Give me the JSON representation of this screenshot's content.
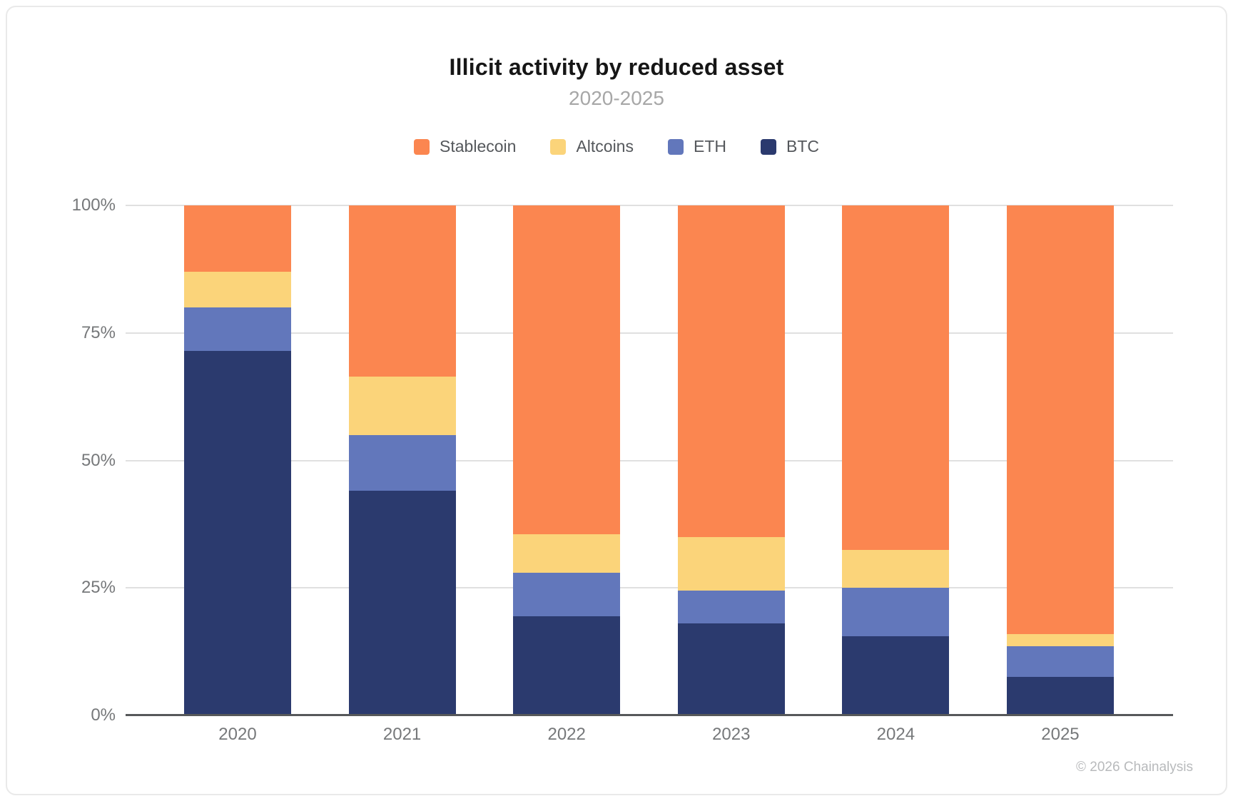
{
  "chart_data": {
    "type": "bar",
    "stacked": true,
    "unit": "%",
    "title": "Illicit activity by reduced asset",
    "subtitle": "2020-2025",
    "xlabel": "",
    "ylabel": "",
    "ylim": [
      0,
      100
    ],
    "grid": true,
    "legend_position": "top",
    "yticks": [
      "100%",
      "75%",
      "50%",
      "25%",
      "0%"
    ],
    "categories": [
      "2020",
      "2021",
      "2022",
      "2023",
      "2024",
      "2025"
    ],
    "series": [
      {
        "name": "Stablecoin",
        "color": "#FB8650",
        "values": [
          13,
          33.5,
          64.5,
          65,
          67.5,
          84
        ]
      },
      {
        "name": "Altcoins",
        "color": "#FBD47A",
        "values": [
          7,
          11.5,
          7.5,
          10.5,
          7.5,
          2.5
        ]
      },
      {
        "name": "ETH",
        "color": "#6277BB",
        "values": [
          8.5,
          11,
          8.5,
          6.5,
          9.5,
          6
        ]
      },
      {
        "name": "BTC",
        "color": "#2B3A6E",
        "values": [
          71.5,
          44,
          19.5,
          18,
          15.5,
          7.5
        ]
      }
    ]
  },
  "colors": {
    "gridline": "#e0e0e0",
    "axis_line": "#56585a",
    "tick_text": "#76787a",
    "title_text": "#161616",
    "subtitle_text": "#a7a7a7"
  },
  "footer": {
    "copyright": "© 2026 Chainalysis"
  }
}
